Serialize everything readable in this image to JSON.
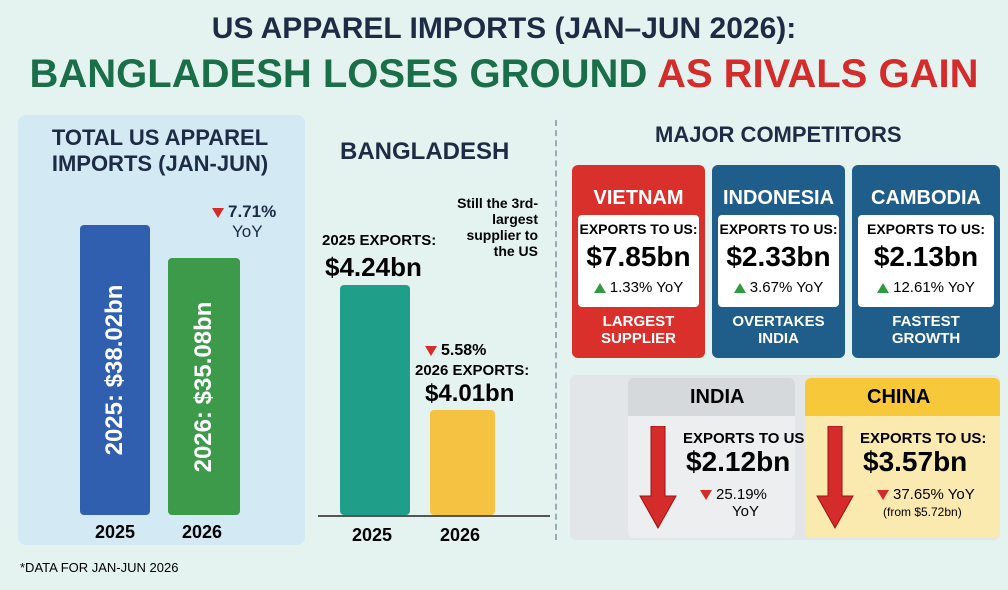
{
  "title": {
    "line1": "US APPAREL IMPORTS (JAN–JUN 2026):",
    "line2a": "BANGLADESH LOSES GROUND",
    "line2b": "AS RIVALS GAIN"
  },
  "total_panel": {
    "title": "TOTAL US APPAREL IMPORTS (JAN-JUN)",
    "change": "7.71%",
    "change_unit": "YoY",
    "bars": [
      {
        "label": "2025: $38.02bn",
        "year": "2025"
      },
      {
        "label": "2026: $35.08bn",
        "year": "2026"
      }
    ]
  },
  "bangladesh": {
    "title": "BANGLADESH",
    "note": "Still the 3rd-largest supplier to the US",
    "change": "5.58%",
    "bars": [
      {
        "caption": "2025 EXPORTS:",
        "amount": "$4.24bn",
        "year": "2025"
      },
      {
        "caption": "2026 EXPORTS:",
        "amount": "$4.01bn",
        "year": "2026"
      }
    ]
  },
  "competitors": {
    "title": "MAJOR COMPETITORS",
    "cards": [
      {
        "name": "VIETNAM",
        "label": "EXPORTS TO US:",
        "amount": "$7.85bn",
        "change": "1.33% YoY",
        "tag": "LARGEST SUPPLIER"
      },
      {
        "name": "INDONESIA",
        "label": "EXPORTS TO US:",
        "amount": "$2.33bn",
        "change": "3.67% YoY",
        "tag": "OVERTAKES INDIA"
      },
      {
        "name": "CAMBODIA",
        "label": "EXPORTS TO US:",
        "amount": "$2.13bn",
        "change": "12.61% YoY",
        "tag": "FASTEST GROWTH"
      }
    ]
  },
  "decliners": [
    {
      "name": "INDIA",
      "label": "EXPORTS TO US:",
      "amount": "$2.12bn",
      "change": "25.19%",
      "unit": "YoY"
    },
    {
      "name": "CHINA",
      "label": "EXPORTS TO US:",
      "amount": "$3.57bn",
      "change": "37.65% YoY",
      "note": "(from $5.72bn)"
    }
  ],
  "footnote": "*DATA FOR JAN-JUN 2026"
}
